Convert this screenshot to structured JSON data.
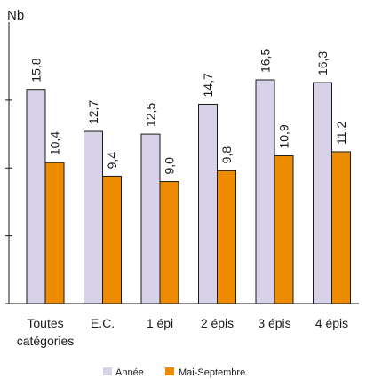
{
  "chart_data": {
    "type": "bar",
    "ylabel": "Nb",
    "ylim": [
      0,
      18
    ],
    "yticks": [
      0,
      5,
      10,
      15
    ],
    "tick_labels_shown": false,
    "categories": [
      [
        "Toutes",
        "catégories"
      ],
      [
        "E.C."
      ],
      [
        "1 épi"
      ],
      [
        "2 épis"
      ],
      [
        "3 épis"
      ],
      [
        "4 épis"
      ]
    ],
    "series": [
      {
        "name": "Année",
        "color": "#d8d2e8",
        "values": [
          15.8,
          12.7,
          12.5,
          14.7,
          16.5,
          16.3
        ],
        "labels": [
          "15,8",
          "12,7",
          "12,5",
          "14,7",
          "16,5",
          "16,3"
        ]
      },
      {
        "name": "Mai-Septembre",
        "color": "#ee8c00",
        "values": [
          10.4,
          9.4,
          9.0,
          9.8,
          10.9,
          11.2
        ],
        "labels": [
          "10,4",
          "9,4",
          "9,0",
          "9,8",
          "10,9",
          "11,2"
        ]
      }
    ],
    "legend_position": "bottom"
  }
}
